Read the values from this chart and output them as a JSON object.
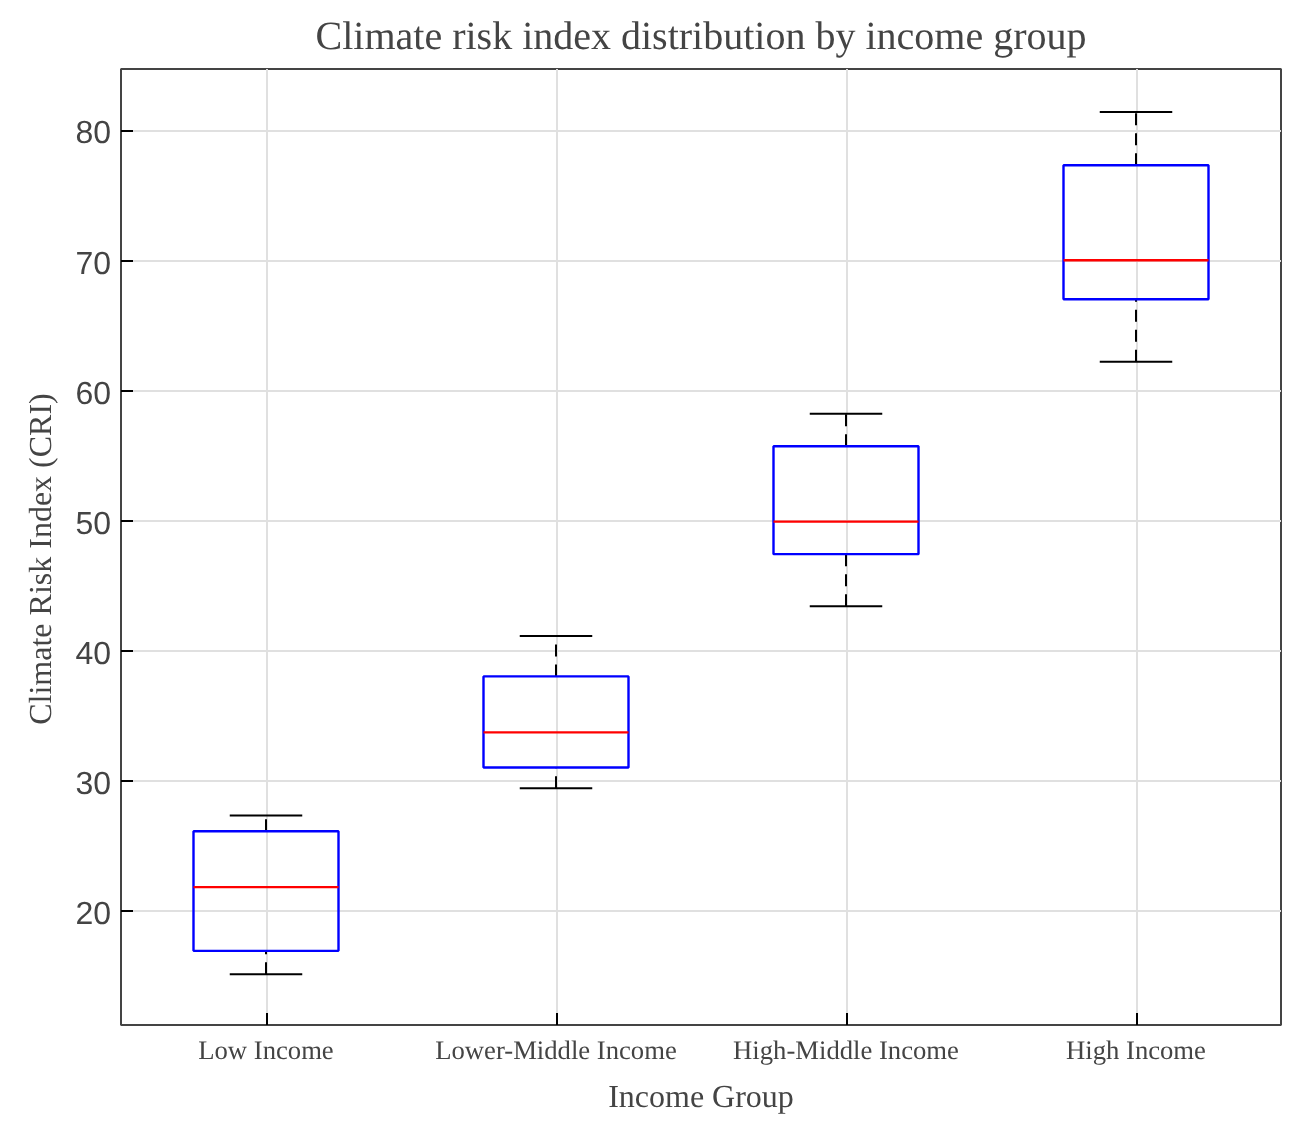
{
  "chart_data": {
    "type": "box",
    "title": "Climate risk index distribution by income group",
    "xlabel": "Income Group",
    "ylabel": "Climate Risk Index    (CRI)",
    "categories": [
      "Low Income",
      "Lower-Middle Income",
      "High-Middle Income",
      "High Income"
    ],
    "boxes": [
      {
        "low": 15.2,
        "q1": 17.0,
        "median": 21.9,
        "q3": 26.2,
        "high": 27.4
      },
      {
        "low": 29.5,
        "q1": 31.1,
        "median": 33.8,
        "q3": 38.1,
        "high": 41.2
      },
      {
        "low": 43.5,
        "q1": 47.5,
        "median": 50.0,
        "q3": 55.8,
        "high": 58.3
      },
      {
        "low": 62.3,
        "q1": 67.1,
        "median": 70.1,
        "q3": 77.4,
        "high": 81.5
      }
    ],
    "color": "#0000ff",
    "ylim": [
      11.3,
      84.8
    ],
    "yticks": [
      20,
      30,
      40,
      50,
      60,
      70,
      80
    ],
    "grid": true
  }
}
